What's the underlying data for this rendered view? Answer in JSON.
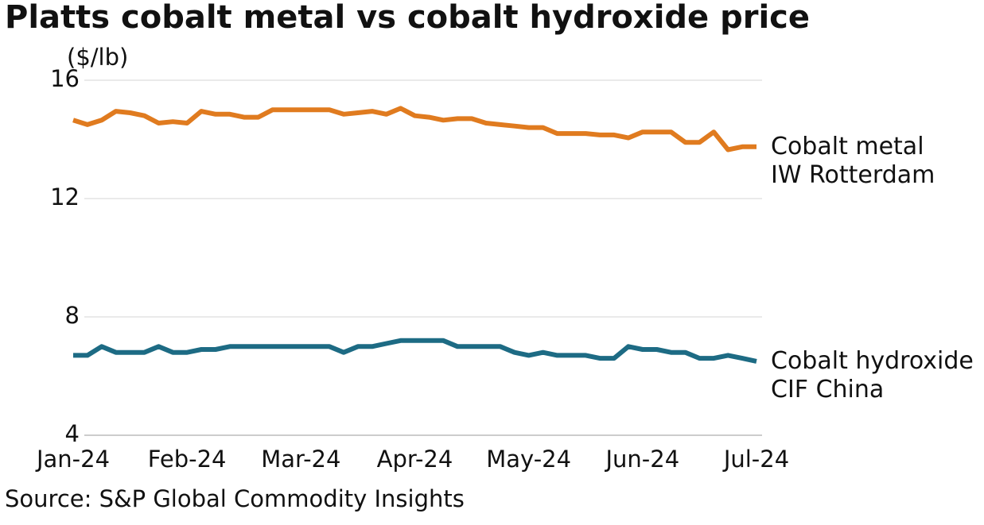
{
  "chart_data": {
    "type": "line",
    "title": "Platts cobalt metal vs cobalt hydroxide price",
    "y_label": "($/lb)",
    "source": "Source: S&P Global Commodity Insights",
    "categories": [
      "Jan-24",
      null,
      null,
      null,
      null,
      null,
      null,
      null,
      "Feb-24",
      null,
      null,
      null,
      null,
      null,
      null,
      null,
      "Mar-24",
      null,
      null,
      null,
      null,
      null,
      null,
      null,
      "Apr-24",
      null,
      null,
      null,
      null,
      null,
      null,
      null,
      "May-24",
      null,
      null,
      null,
      null,
      null,
      null,
      null,
      "Jun-24",
      null,
      null,
      null,
      null,
      null,
      null,
      null,
      "Jul-24"
    ],
    "series": [
      {
        "name": "Cobalt metal\nIW Rotterdam",
        "color": "#e07b1f",
        "values": [
          14.65,
          14.5,
          14.65,
          14.95,
          14.9,
          14.8,
          14.55,
          14.6,
          14.55,
          14.95,
          14.85,
          14.85,
          14.75,
          14.75,
          15.0,
          15.0,
          15.0,
          15.0,
          15.0,
          14.85,
          14.9,
          14.95,
          14.85,
          15.05,
          14.8,
          14.75,
          14.65,
          14.7,
          14.7,
          14.55,
          14.5,
          14.45,
          14.4,
          14.4,
          14.2,
          14.2,
          14.2,
          14.15,
          14.15,
          14.05,
          14.25,
          14.25,
          14.25,
          13.9,
          13.9,
          14.25,
          13.65,
          13.75,
          13.75
        ]
      },
      {
        "name": "Cobalt hydroxide\nCIF China",
        "color": "#1d6b84",
        "values": [
          6.7,
          6.7,
          7.0,
          6.8,
          6.8,
          6.8,
          7.0,
          6.8,
          6.8,
          6.9,
          6.9,
          7.0,
          7.0,
          7.0,
          7.0,
          7.0,
          7.0,
          7.0,
          7.0,
          6.8,
          7.0,
          7.0,
          7.1,
          7.2,
          7.2,
          7.2,
          7.2,
          7.0,
          7.0,
          7.0,
          7.0,
          6.8,
          6.7,
          6.8,
          6.7,
          6.7,
          6.7,
          6.6,
          6.6,
          7.0,
          6.9,
          6.9,
          6.8,
          6.8,
          6.6,
          6.6,
          6.7,
          6.6,
          6.5
        ]
      }
    ],
    "ylim": [
      4,
      16
    ],
    "yticks": [
      4,
      8,
      12,
      16
    ],
    "grid": true
  }
}
